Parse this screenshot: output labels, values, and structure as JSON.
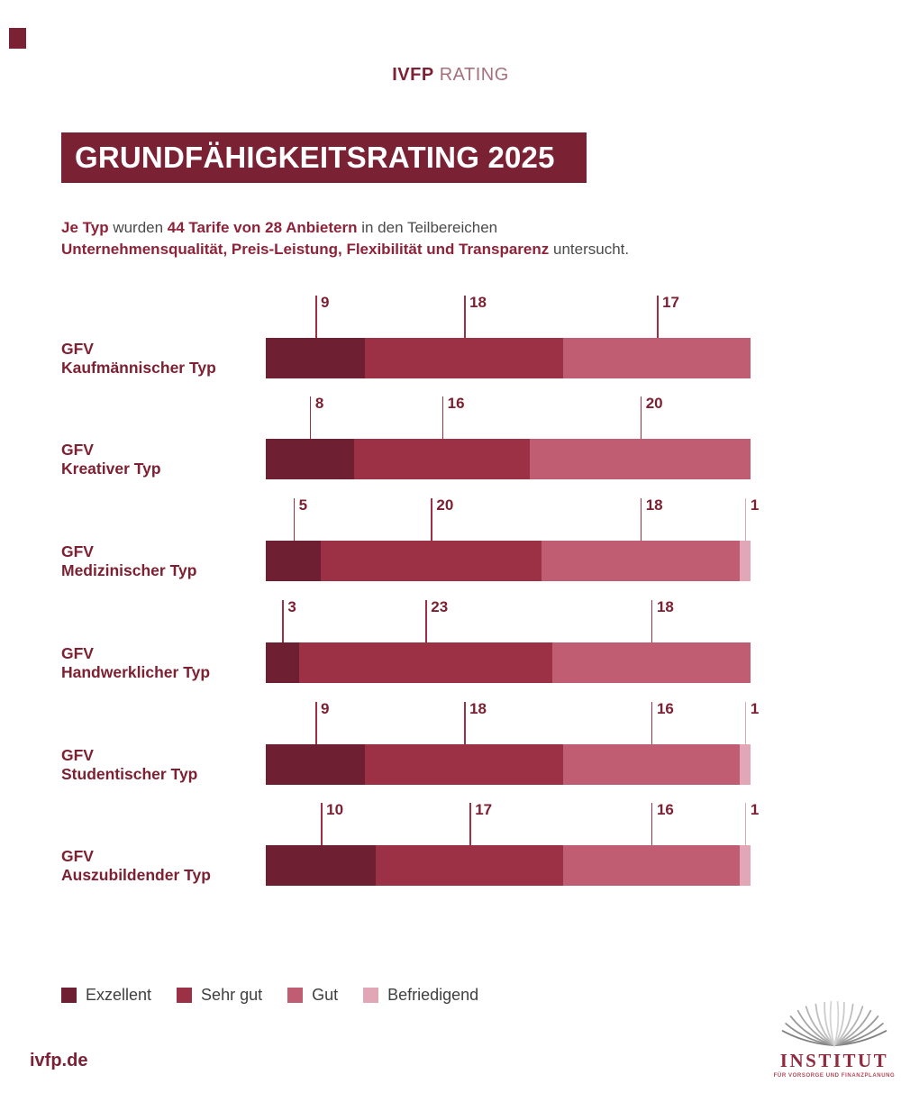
{
  "header": {
    "brand_bold": "IVFP",
    "brand_light": "RATING"
  },
  "title": {
    "text": "GRUNDFÄHIGKEITSRATING 2025"
  },
  "subtitle": {
    "lines": [
      [
        {
          "text": "Je Typ",
          "bold": true
        },
        {
          "text": " wurden ",
          "bold": false
        },
        {
          "text": "44 Tarife von 28 Anbietern",
          "bold": true
        },
        {
          "text": " in den Teilbereichen",
          "bold": false
        }
      ],
      [
        {
          "text": "Unternehmensqualität, Preis-Leistung, Flexibilität und Transparenz",
          "bold": true
        },
        {
          "text": " untersucht.",
          "bold": false
        }
      ]
    ]
  },
  "chart_data": {
    "type": "bar",
    "orientation": "horizontal-stacked",
    "unit_total": 44,
    "ratings": [
      "Exzellent",
      "Sehr gut",
      "Gut",
      "Befriedigend"
    ],
    "colors": [
      "#6e1f31",
      "#9c3145",
      "#c05d72",
      "#e2a7b6"
    ],
    "callout_line_colors": [
      "#9c3145",
      "#9c3145",
      "#9c3145",
      "#e2a7b6"
    ],
    "categories": [
      "GFV Kaufmännischer Typ",
      "GFV Kreativer Typ",
      "GFV Medizinischer Typ",
      "GFV Handwerklicher Typ",
      "GFV Studentischer Typ",
      "GFV Auszubildender Typ"
    ],
    "rows": [
      {
        "label_line1": "GFV",
        "label_line2": "Kaufmännischer Typ",
        "values": [
          9,
          18,
          17
        ]
      },
      {
        "label_line1": "GFV",
        "label_line2": "Kreativer Typ",
        "values": [
          8,
          16,
          20
        ]
      },
      {
        "label_line1": "GFV",
        "label_line2": "Medizinischer Typ",
        "values": [
          5,
          20,
          18,
          1
        ]
      },
      {
        "label_line1": "GFV",
        "label_line2": "Handwerklicher Typ",
        "values": [
          3,
          23,
          18
        ]
      },
      {
        "label_line1": "GFV",
        "label_line2": "Studentischer Typ",
        "values": [
          9,
          18,
          16,
          1
        ]
      },
      {
        "label_line1": "GFV",
        "label_line2": "Auszubildender Typ",
        "values": [
          10,
          17,
          16,
          1
        ]
      }
    ]
  },
  "legend": {
    "items": [
      {
        "label": "Exzellent",
        "color": "#6e1f31"
      },
      {
        "label": "Sehr gut",
        "color": "#9c3145"
      },
      {
        "label": "Gut",
        "color": "#c05d72"
      },
      {
        "label": "Befriedigend",
        "color": "#e2a7b6"
      }
    ]
  },
  "footer": {
    "site": "ivfp.de",
    "logo_name": "INSTITUT",
    "logo_sub": "FÜR VORSORGE UND FINANZPLANUNG"
  }
}
